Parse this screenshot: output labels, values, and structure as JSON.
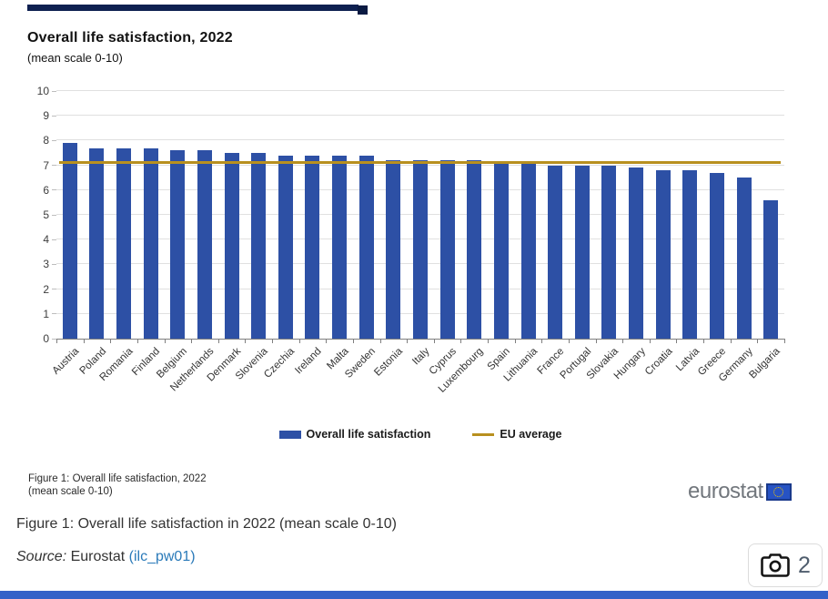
{
  "decor": {
    "top_bar_color": "#0e2050",
    "top_bar_nub_color": "#0a1a42",
    "bottom_bar_color": "#3462c8"
  },
  "chart": {
    "title": "Overall life satisfaction, 2022",
    "subtitle": "(mean scale 0-10)",
    "inner_caption_line1": "Figure 1: Overall life satisfaction, 2022",
    "inner_caption_line2": "(mean scale 0-10)",
    "brand": "eurostat"
  },
  "chart_data": {
    "type": "bar",
    "title": "Overall life satisfaction, 2022",
    "subtitle": "(mean scale 0-10)",
    "categories": [
      "Austria",
      "Poland",
      "Romania",
      "Finland",
      "Belgium",
      "Netherlands",
      "Denmark",
      "Slovenia",
      "Czechia",
      "Ireland",
      "Malta",
      "Sweden",
      "Estonia",
      "Italy",
      "Cyprus",
      "Luxembourg",
      "Spain",
      "Lithuania",
      "France",
      "Portugal",
      "Slovakia",
      "Hungary",
      "Croatia",
      "Latvia",
      "Greece",
      "Germany",
      "Bulgaria"
    ],
    "values": [
      7.9,
      7.7,
      7.7,
      7.7,
      7.6,
      7.6,
      7.5,
      7.5,
      7.4,
      7.4,
      7.4,
      7.4,
      7.2,
      7.2,
      7.2,
      7.2,
      7.1,
      7.1,
      7.0,
      7.0,
      7.0,
      6.9,
      6.8,
      6.8,
      6.7,
      6.5,
      5.6
    ],
    "eu_average": 7.1,
    "ylim": [
      0,
      10
    ],
    "yticks": [
      0,
      1,
      2,
      3,
      4,
      5,
      6,
      7,
      8,
      9,
      10
    ],
    "xlabel": "",
    "ylabel": "",
    "grid": true,
    "bar_color": "#2d50a5",
    "line_color": "#b8901f",
    "legend_position": "bottom",
    "legend": [
      {
        "label": "Overall life satisfaction",
        "swatch": "bar",
        "color": "#2d50a5"
      },
      {
        "label": "EU average",
        "swatch": "line",
        "color": "#b8901f"
      }
    ]
  },
  "page": {
    "caption": "Figure 1: Overall life satisfaction in 2022 (mean scale 0-10)",
    "source_prefix": "Source:",
    "source_text": " Eurostat ",
    "source_link": "(ilc_pw01)",
    "link_color": "#2a7ab9",
    "image_count": "2"
  }
}
